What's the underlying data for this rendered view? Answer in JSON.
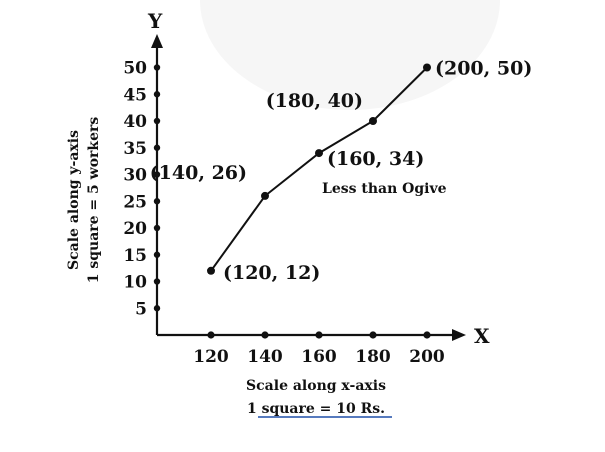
{
  "chart_data": {
    "type": "line",
    "title": "",
    "x_axis_letter": "X",
    "y_axis_letter": "Y",
    "x": [
      120,
      140,
      160,
      180,
      200
    ],
    "y": [
      12,
      26,
      34,
      40,
      50
    ],
    "point_labels": [
      "(120, 12)",
      "(140, 26)",
      "(160, 34)",
      "(180, 40)",
      "(200, 50)"
    ],
    "x_ticks": [
      120,
      140,
      160,
      180,
      200
    ],
    "y_ticks": [
      5,
      10,
      15,
      20,
      25,
      30,
      35,
      40,
      45,
      50
    ],
    "x_tick_labels": [
      "120",
      "140",
      "160",
      "180",
      "200"
    ],
    "y_tick_labels": [
      "5",
      "10",
      "15",
      "20",
      "25",
      "30",
      "35",
      "40",
      "45",
      "50"
    ],
    "annotation": "Less than Ogive",
    "xlabel_line1": "Scale along x-axis",
    "xlabel_line2": "1 square = 10 Rs.",
    "ylabel_line1": "Scale along y-axis",
    "ylabel_line2": "1 square = 5 workers",
    "grid": false,
    "colors": {
      "line": "#111111",
      "points": "#111111",
      "axes": "#111111",
      "underline": "#1f4fa8"
    }
  }
}
